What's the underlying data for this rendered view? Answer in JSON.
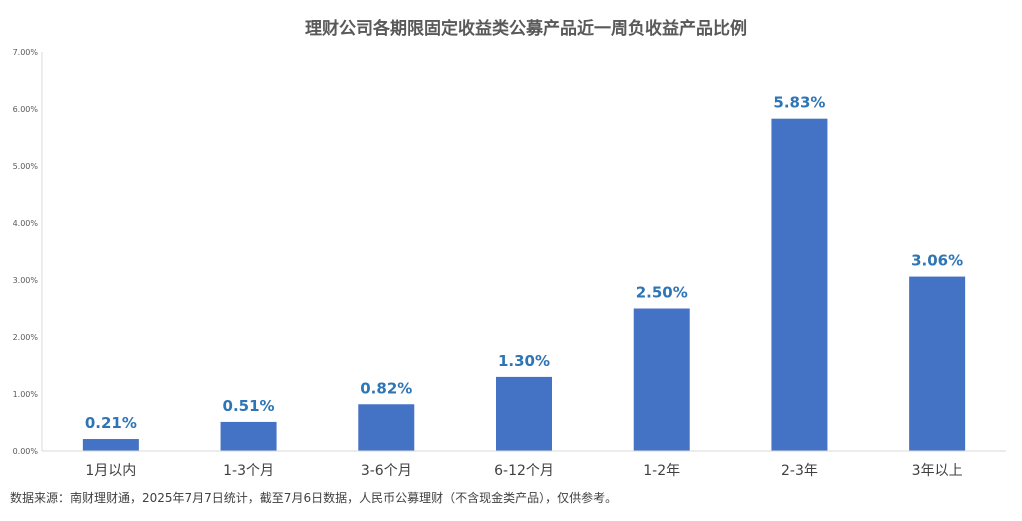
{
  "chart_data": {
    "type": "bar",
    "title": "理财公司各期限固定收益类公募产品近一周负收益产品比例",
    "categories": [
      "1月以内",
      "1-3个月",
      "3-6个月",
      "6-12个月",
      "1-2年",
      "2-3年",
      "3年以上"
    ],
    "values": [
      0.21,
      0.51,
      0.82,
      1.3,
      2.5,
      5.83,
      3.06
    ],
    "data_labels": [
      "0.21%",
      "0.51%",
      "0.82%",
      "1.30%",
      "2.50%",
      "5.83%",
      "3.06%"
    ],
    "y_ticks": [
      0,
      1,
      2,
      3,
      4,
      5,
      6,
      7
    ],
    "y_tick_labels": [
      "0.00%",
      "1.00%",
      "2.00%",
      "3.00%",
      "4.00%",
      "5.00%",
      "6.00%",
      "7.00%"
    ],
    "ylim": [
      0,
      7
    ],
    "xlabel": "",
    "ylabel": "",
    "grid": false,
    "legend": "none",
    "bar_color": "#4472C4",
    "label_color": "#2E75B6"
  },
  "footer": {
    "source": "数据来源：南财理财通，2025年7月7日统计，截至7月6日数据，人民币公募理财（不含现金类产品），仅供参考。"
  }
}
